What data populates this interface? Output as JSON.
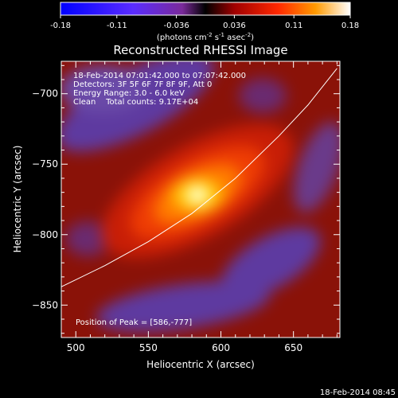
{
  "chart_data": {
    "type": "heatmap",
    "title": "Reconstructed RHESSI Image",
    "xlabel": "Heliocentric X (arcsec)",
    "ylabel": "Heliocentric Y (arcsec)",
    "xlim": [
      490,
      682
    ],
    "ylim": [
      -873,
      -677
    ],
    "xticks": [
      500,
      550,
      600,
      650
    ],
    "yticks": [
      -700,
      -750,
      -800,
      -850
    ],
    "colorbar": {
      "min": -0.18,
      "max": 0.18,
      "ticks": [
        "-0.18",
        "-0.11",
        "-0.036",
        "0.036",
        "0.11",
        "0.18"
      ],
      "unit_prefix": "(photons cm",
      "unit_exp1": "-2",
      "unit_mid": " s",
      "unit_exp2": "-1",
      "unit_mid2": " asec",
      "unit_exp3": "-2",
      "unit_suffix": ")"
    },
    "info_lines": [
      "18-Feb-2014 07:01:42.000 to 07:07:42.000",
      "Detectors: 3F 5F 6F 7F 8F 9F, Att 0",
      "Energy Range: 3.0 - 6.0 keV",
      "Clean    Total counts: 9.17E+04"
    ],
    "peak_label": "Position of Peak = [586,-777]",
    "peak": [
      586,
      -777
    ],
    "limb_points": [
      [
        490,
        -837
      ],
      [
        520,
        -822
      ],
      [
        550,
        -805
      ],
      [
        580,
        -785
      ],
      [
        610,
        -760
      ],
      [
        640,
        -730
      ],
      [
        660,
        -708
      ],
      [
        680,
        -682
      ]
    ],
    "timestamp": "18-Feb-2014 08:45"
  }
}
